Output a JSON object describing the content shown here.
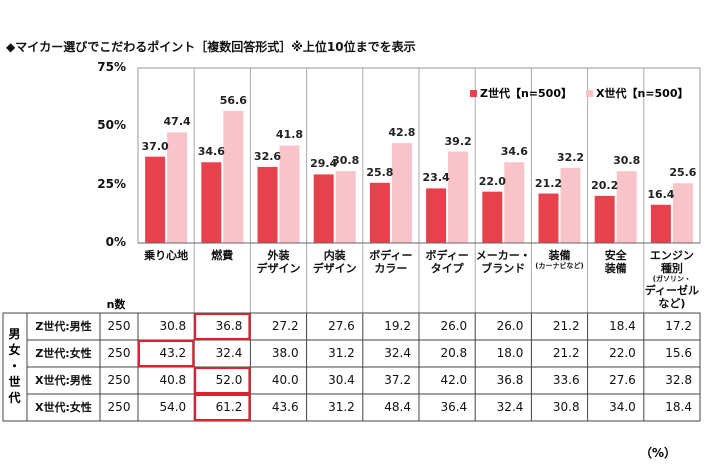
{
  "title": "◆マイカー選びでこだわるポイント［複数回答形式］※上位10位までを表示",
  "chart_data": {
    "type": "bar",
    "categories": [
      "乗り心地",
      "燃費",
      "外装デザイン",
      "内装デザイン",
      "ボディーカラー",
      "ボディータイプ",
      "メーカー・ブランド",
      "装備(カーナビなど)",
      "安全装備",
      "エンジン種別(ガソリン・ディーゼルなど)"
    ],
    "category_lines": [
      [
        "乗り心地"
      ],
      [
        "燃費"
      ],
      [
        "外装",
        "デザイン"
      ],
      [
        "内装",
        "デザイン"
      ],
      [
        "ボディー",
        "カラー"
      ],
      [
        "ボディー",
        "タイプ"
      ],
      [
        "メーカー・",
        "ブランド"
      ],
      [
        "装備",
        "(カーナビなど)"
      ],
      [
        "安全",
        "装備"
      ],
      [
        "エンジン",
        "種別",
        "(ガソリン・",
        "ディーゼルなど)"
      ]
    ],
    "series": [
      {
        "name": "Z世代【n=500】",
        "color": "#e8414e",
        "values": [
          37.0,
          34.6,
          32.6,
          29.4,
          25.8,
          23.4,
          22.0,
          21.2,
          20.2,
          16.4
        ]
      },
      {
        "name": "X世代【n=500】",
        "color": "#f8c3c9",
        "values": [
          47.4,
          56.6,
          41.8,
          30.8,
          42.8,
          39.2,
          34.6,
          32.2,
          30.8,
          25.6
        ]
      }
    ],
    "yticks": [
      "0%",
      "25%",
      "50%",
      "75%"
    ],
    "ylim": [
      0,
      75
    ],
    "legend": "top-right"
  },
  "table": {
    "group_label": "男女・世代",
    "n_header": "n数",
    "unit": "（%）",
    "rows": [
      {
        "label": "Z世代:男性",
        "n": "250",
        "values": [
          "30.8",
          "36.8",
          "27.2",
          "27.6",
          "19.2",
          "26.0",
          "26.0",
          "21.2",
          "18.4",
          "17.2"
        ],
        "highlight": [
          1
        ]
      },
      {
        "label": "Z世代:女性",
        "n": "250",
        "values": [
          "43.2",
          "32.4",
          "38.0",
          "31.2",
          "32.4",
          "20.8",
          "18.0",
          "21.2",
          "22.0",
          "15.6"
        ],
        "highlight": [
          0
        ]
      },
      {
        "label": "X世代:男性",
        "n": "250",
        "values": [
          "40.8",
          "52.0",
          "40.0",
          "30.4",
          "37.2",
          "42.0",
          "36.8",
          "33.6",
          "27.6",
          "32.8"
        ],
        "highlight": [
          1
        ]
      },
      {
        "label": "X世代:女性",
        "n": "250",
        "values": [
          "54.0",
          "61.2",
          "43.6",
          "31.2",
          "48.4",
          "36.4",
          "32.4",
          "30.8",
          "34.0",
          "18.4"
        ],
        "highlight": [
          1
        ]
      }
    ]
  }
}
